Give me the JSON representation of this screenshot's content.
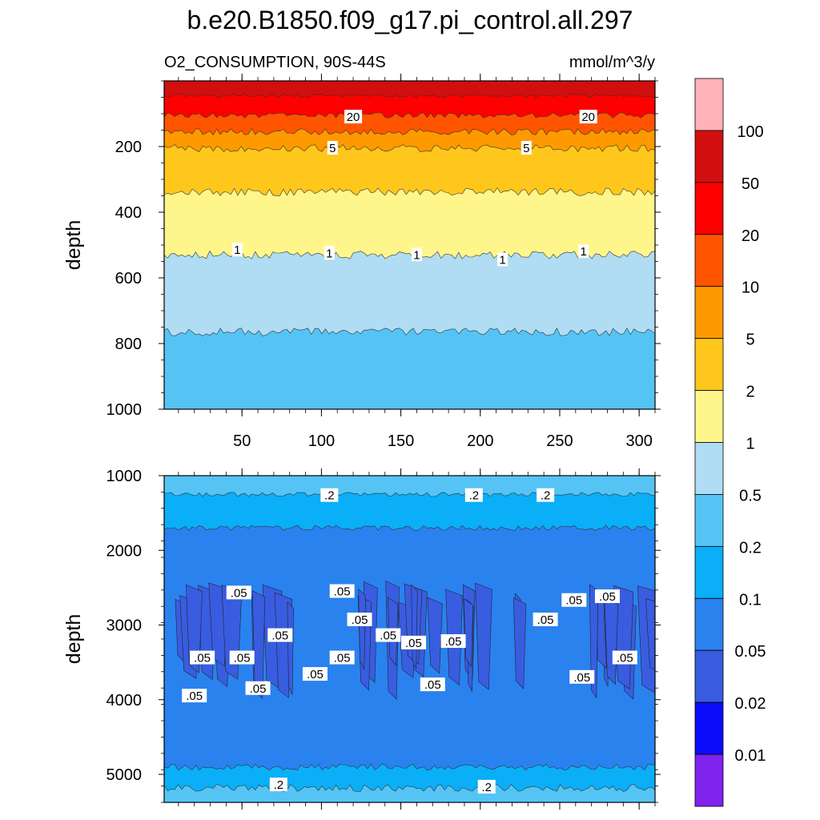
{
  "chart_data": {
    "type": "heatmap",
    "title": "b.e20.B1850.f09_g17.pi_control.all.297",
    "variable_label": "O2_CONSUMPTION, 90S-44S",
    "units_label": "mmol/m^3/y",
    "colorbar": {
      "labels": [
        "100",
        "50",
        "20",
        "10",
        "5",
        "2",
        "1",
        "0.5",
        "0.2",
        "0.1",
        "0.05",
        "0.02",
        "0.01"
      ],
      "colors": [
        "#ffb3b8",
        "#d10f0f",
        "#ff0000",
        "#ff5500",
        "#ff9900",
        "#ffc71c",
        "#fff68b",
        "#b0dcf4",
        "#55c4f5",
        "#0aaff7",
        "#2a82ef",
        "#3a5ce0",
        "#0b0bfa",
        "#7f22ee"
      ]
    },
    "panels": [
      {
        "name": "upper",
        "ylabel": "depth",
        "ylim": [
          0,
          1000
        ],
        "xlim": [
          1,
          310
        ],
        "yticks": [
          "200",
          "400",
          "600",
          "800",
          "1000"
        ],
        "xticks": [
          "50",
          "100",
          "150",
          "200",
          "250",
          "300"
        ],
        "bands": [
          {
            "color": "#d10f0f",
            "from": 0,
            "to": 45
          },
          {
            "color": "#ff0000",
            "from": 45,
            "to": 105
          },
          {
            "color": "#ff5500",
            "from": 105,
            "to": 155
          },
          {
            "color": "#ff9900",
            "from": 155,
            "to": 205
          },
          {
            "color": "#ffc71c",
            "from": 205,
            "to": 338
          },
          {
            "color": "#fff68b",
            "from": 338,
            "to": 530
          },
          {
            "color": "#b0dcf4",
            "from": 530,
            "to": 765
          },
          {
            "color": "#55c4f5",
            "from": 765,
            "to": 1000
          }
        ],
        "contour_labels": [
          {
            "text": "20",
            "x": 120,
            "y": 110
          },
          {
            "text": "20",
            "x": 268,
            "y": 110
          },
          {
            "text": "5",
            "x": 107,
            "y": 205
          },
          {
            "text": "5",
            "x": 229,
            "y": 205
          },
          {
            "text": "1",
            "x": 47,
            "y": 515
          },
          {
            "text": "1",
            "x": 105,
            "y": 525
          },
          {
            "text": "1",
            "x": 160,
            "y": 530
          },
          {
            "text": "1",
            "x": 214,
            "y": 545
          },
          {
            "text": "1",
            "x": 265,
            "y": 520
          }
        ]
      },
      {
        "name": "lower",
        "ylabel": "depth",
        "ylim": [
          1000,
          5375
        ],
        "xlim": [
          1,
          310
        ],
        "yticks": [
          "1000",
          "2000",
          "3000",
          "4000",
          "5000"
        ],
        "bands": [
          {
            "color": "#55c4f5",
            "from": 1000,
            "to": 1250
          },
          {
            "color": "#0aaff7",
            "from": 1250,
            "to": 1700
          },
          {
            "color": "#2a82ef",
            "from": 1700,
            "to": 4900
          },
          {
            "color": "#0aaff7",
            "from": 4900,
            "to": 5180
          },
          {
            "color": "#55c4f5",
            "from": 5180,
            "to": 5375
          }
        ],
        "contour_labels": [
          {
            "text": ".2",
            "x": 105,
            "y": 1265
          },
          {
            "text": ".2",
            "x": 196,
            "y": 1265
          },
          {
            "text": ".2",
            "x": 241,
            "y": 1265
          },
          {
            "text": ".2",
            "x": 73,
            "y": 5140
          },
          {
            "text": ".2",
            "x": 204,
            "y": 5170
          },
          {
            "text": ".05",
            "x": 48,
            "y": 2570
          },
          {
            "text": ".05",
            "x": 113,
            "y": 2550
          },
          {
            "text": ".05",
            "x": 124,
            "y": 2930
          },
          {
            "text": ".05",
            "x": 74,
            "y": 3140
          },
          {
            "text": ".05",
            "x": 142,
            "y": 3140
          },
          {
            "text": ".05",
            "x": 158,
            "y": 3240
          },
          {
            "text": ".05",
            "x": 183,
            "y": 3220
          },
          {
            "text": ".05",
            "x": 241,
            "y": 2930
          },
          {
            "text": ".05",
            "x": 259,
            "y": 2670
          },
          {
            "text": ".05",
            "x": 280,
            "y": 2620
          },
          {
            "text": ".05",
            "x": 25,
            "y": 3440
          },
          {
            "text": ".05",
            "x": 50,
            "y": 3440
          },
          {
            "text": ".05",
            "x": 113,
            "y": 3440
          },
          {
            "text": ".05",
            "x": 291,
            "y": 3440
          },
          {
            "text": ".05",
            "x": 96,
            "y": 3660
          },
          {
            "text": ".05",
            "x": 60,
            "y": 3850
          },
          {
            "text": ".05",
            "x": 170,
            "y": 3800
          },
          {
            "text": ".05",
            "x": 264,
            "y": 3700
          },
          {
            "text": ".05",
            "x": 20,
            "y": 3950
          }
        ]
      }
    ]
  }
}
